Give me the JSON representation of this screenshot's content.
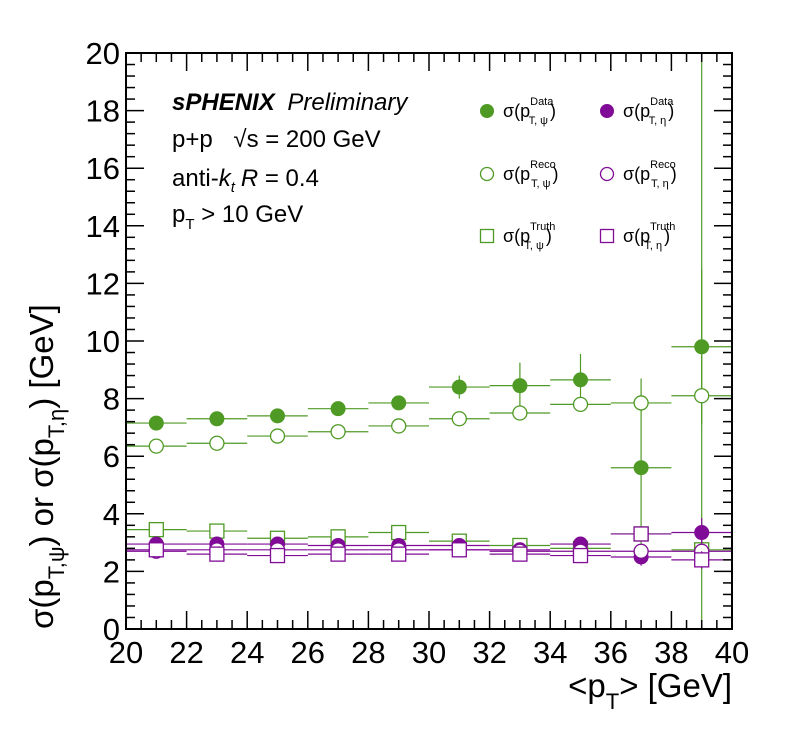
{
  "chart_data": {
    "type": "scatter",
    "xlabel_main": "<p",
    "xlabel_sub": "T",
    "xlabel_rest": "> [GeV]",
    "ylabel_parts": {
      "sigma1": "σ(p",
      "sub1": "T,ψ",
      "mid": ") or   σ(p",
      "sub2": "T,η",
      "end": ") [GeV]"
    },
    "xlim": [
      20,
      40
    ],
    "ylim": [
      0,
      20
    ],
    "x_ticks": [
      "20",
      "22",
      "24",
      "26",
      "28",
      "30",
      "32",
      "34",
      "36",
      "38",
      "40"
    ],
    "y_ticks": [
      "0",
      "2",
      "4",
      "6",
      "8",
      "10",
      "12",
      "14",
      "16",
      "18",
      "20"
    ],
    "annotations": {
      "experiment": "sPHENIX",
      "status": "Preliminary",
      "system": "p+p",
      "energy": "√s = 200 GeV",
      "jet_algo_prefix": "anti-",
      "jet_algo_k": "k",
      "jet_algo_t": "t",
      "jet_algo_R": "R",
      "jet_algo_value": " = 0.4",
      "pt_cut_p": "p",
      "pt_cut_T": "T",
      "pt_cut_rest": " > 10 GeV"
    },
    "colors": {
      "psi": "#4f9a25",
      "eta": "#800b96"
    },
    "series": [
      {
        "name": "σ(p_T,ψ^Data)",
        "key": "psi_data",
        "marker": "filled-circle",
        "color": "psi",
        "x": [
          21,
          23,
          25,
          27,
          29,
          31,
          33,
          35,
          37,
          39
        ],
        "y": [
          7.15,
          7.3,
          7.4,
          7.65,
          7.85,
          8.4,
          8.45,
          8.65,
          5.6,
          9.8
        ],
        "yerr": [
          0.1,
          0.1,
          0.15,
          0.15,
          0.2,
          0.4,
          0.8,
          0.9,
          3.1,
          2.7
        ]
      },
      {
        "name": "σ(p_T,ψ^Reco)",
        "key": "psi_reco",
        "marker": "open-circle",
        "color": "psi",
        "x": [
          21,
          23,
          25,
          27,
          29,
          31,
          33,
          35,
          37,
          39
        ],
        "y": [
          6.35,
          6.45,
          6.7,
          6.85,
          7.05,
          7.3,
          7.5,
          7.8,
          7.85,
          8.1
        ],
        "yerr": [
          0.05,
          0.05,
          0.05,
          0.1,
          0.1,
          0.1,
          0.15,
          0.2,
          0.3,
          12.0
        ]
      },
      {
        "name": "σ(p_T,ψ^Truth)",
        "key": "psi_truth",
        "marker": "open-square",
        "color": "psi",
        "x": [
          21,
          23,
          25,
          27,
          29,
          31,
          33,
          35,
          37,
          39
        ],
        "y": [
          3.45,
          3.4,
          3.15,
          3.2,
          3.35,
          3.05,
          2.9,
          2.8,
          3.3,
          2.75
        ],
        "yerr": [
          0.05,
          0.05,
          0.05,
          0.05,
          0.1,
          0.1,
          0.1,
          0.1,
          0.2,
          0.4
        ]
      },
      {
        "name": "σ(p_T,η^Data)",
        "key": "eta_data",
        "marker": "filled-circle",
        "color": "eta",
        "x": [
          21,
          23,
          25,
          27,
          29,
          31,
          33,
          35,
          37,
          39
        ],
        "y": [
          2.95,
          2.95,
          2.95,
          2.9,
          2.9,
          2.9,
          2.75,
          2.95,
          2.5,
          3.35
        ],
        "yerr": [
          0.05,
          0.05,
          0.05,
          0.05,
          0.1,
          0.1,
          0.15,
          0.2,
          0.3,
          0.5
        ]
      },
      {
        "name": "σ(p_T,η^Reco)",
        "key": "eta_reco",
        "marker": "open-circle",
        "color": "eta",
        "x": [
          21,
          23,
          25,
          27,
          29,
          31,
          33,
          35,
          37,
          39
        ],
        "y": [
          2.7,
          2.75,
          2.75,
          2.75,
          2.75,
          2.75,
          2.7,
          2.7,
          2.7,
          2.7
        ],
        "yerr": [
          0.03,
          0.03,
          0.03,
          0.03,
          0.03,
          0.05,
          0.05,
          0.05,
          0.05,
          0.05
        ]
      },
      {
        "name": "σ(p_T,η^Truth)",
        "key": "eta_truth",
        "marker": "open-square",
        "color": "eta",
        "x": [
          21,
          23,
          25,
          27,
          29,
          31,
          33,
          35,
          37,
          39
        ],
        "y": [
          2.75,
          2.6,
          2.55,
          2.6,
          2.6,
          2.75,
          2.6,
          2.55,
          3.3,
          2.4
        ],
        "yerr": [
          0.05,
          0.05,
          0.05,
          0.05,
          0.05,
          0.05,
          0.05,
          0.05,
          0.2,
          0.3
        ]
      }
    ],
    "legend": {
      "placement": "top-right",
      "entries": [
        {
          "key": "psi_data",
          "sigma": "σ(p",
          "sup": "Data",
          "sub": "T,  ψ",
          "close": ")"
        },
        {
          "key": "eta_data",
          "sigma": "σ(p",
          "sup": "Data",
          "sub": "T,  η",
          "close": ")"
        },
        {
          "key": "psi_reco",
          "sigma": "σ(p",
          "sup": "Reco",
          "sub": "T,  ψ",
          "close": ")"
        },
        {
          "key": "eta_reco",
          "sigma": "σ(p",
          "sup": "Reco",
          "sub": "T,  η",
          "close": ")"
        },
        {
          "key": "psi_truth",
          "sigma": "σ(p",
          "sup": "Truth",
          "sub": "T,  ψ",
          "close": ")"
        },
        {
          "key": "eta_truth",
          "sigma": "σ(p",
          "sup": "Truth",
          "sub": "T,  η",
          "close": ")"
        }
      ]
    }
  }
}
